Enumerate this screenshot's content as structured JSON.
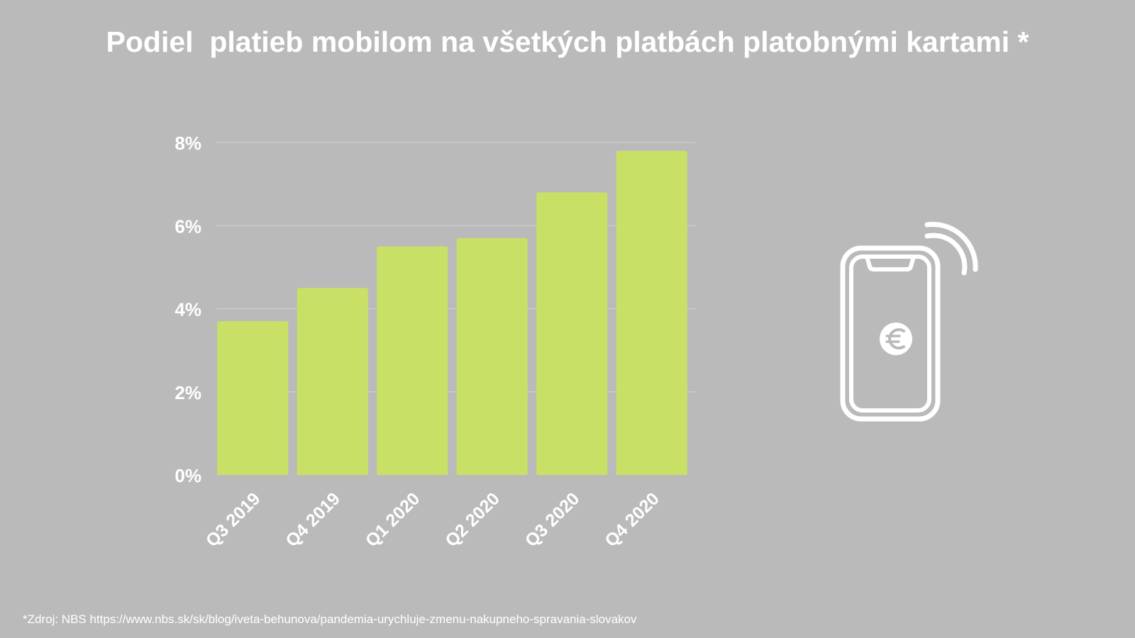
{
  "title": "Podiel  platieb mobilom na všetkých platbách platobnými kartami *",
  "source_note": "*Zdroj: NBS https://www.nbs.sk/sk/blog/iveta-behunova/pandemia-urychluje-zmenu-nakupneho-spravania-slovakov",
  "colors": {
    "background": "#bababa",
    "bar": "#c9e066",
    "text": "#ffffff",
    "grid": "#cfcfcf"
  },
  "icons": {
    "illustration": "smartphone-contactless-euro-icon",
    "currency": "euro-icon"
  },
  "chart_data": {
    "type": "bar",
    "title": "Podiel  platieb mobilom na všetkých platbách platobnými kartami *",
    "xlabel": "",
    "ylabel": "",
    "categories": [
      "Q3 2019",
      "Q4 2019",
      "Q1 2020",
      "Q2 2020",
      "Q3 2020",
      "Q4 2020"
    ],
    "values": [
      3.7,
      4.5,
      5.5,
      5.7,
      6.8,
      7.8
    ],
    "unit": "%",
    "ylim": [
      0,
      8
    ],
    "yticks": [
      0,
      2,
      4,
      6,
      8
    ],
    "ytick_labels": [
      "0%",
      "2%",
      "4%",
      "6%",
      "8%"
    ],
    "grid": true,
    "legend": "none"
  }
}
